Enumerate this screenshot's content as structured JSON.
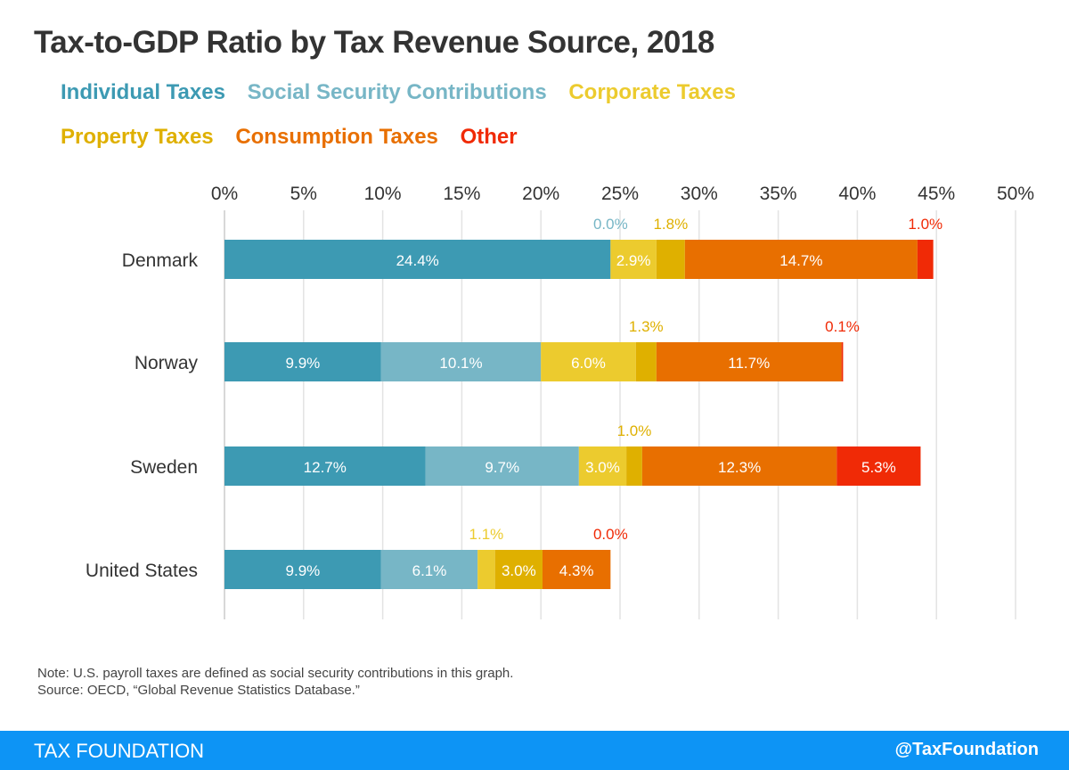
{
  "chart_data": {
    "type": "bar",
    "orientation": "horizontal",
    "stacked": true,
    "title": "Tax-to-GDP Ratio by Tax Revenue Source, 2018",
    "categories": [
      "Denmark",
      "Norway",
      "Sweden",
      "United States"
    ],
    "series": [
      {
        "name": "Individual Taxes",
        "color": "#3d9ab3",
        "values": [
          24.4,
          9.9,
          12.7,
          9.9
        ],
        "labels": [
          "24.4%",
          "9.9%",
          "12.7%",
          "9.9%"
        ]
      },
      {
        "name": "Social Security Contributions",
        "color": "#77b6c6",
        "values": [
          0.0,
          10.1,
          9.7,
          6.1
        ],
        "labels": [
          "0.0%",
          "10.1%",
          "9.7%",
          "6.1%"
        ]
      },
      {
        "name": "Corporate Taxes",
        "color": "#eccb2e",
        "values": [
          2.9,
          6.0,
          3.0,
          1.1
        ],
        "labels": [
          "2.9%",
          "6.0%",
          "3.0%",
          "1.1%"
        ]
      },
      {
        "name": "Property Taxes",
        "color": "#dfb000",
        "values": [
          1.8,
          1.3,
          1.0,
          3.0
        ],
        "labels": [
          "1.8%",
          "1.3%",
          "1.0%",
          "3.0%"
        ]
      },
      {
        "name": "Consumption Taxes",
        "color": "#e86f00",
        "values": [
          14.7,
          11.7,
          12.3,
          4.3
        ],
        "labels": [
          "14.7%",
          "11.7%",
          "12.3%",
          "4.3%"
        ]
      },
      {
        "name": "Other",
        "color": "#f02a06",
        "values": [
          1.0,
          0.1,
          5.3,
          0.0
        ],
        "labels": [
          "1.0%",
          "0.1%",
          "5.3%",
          "0.0%"
        ]
      }
    ],
    "xlim": [
      0,
      50
    ],
    "xticks": [
      "0%",
      "5%",
      "10%",
      "15%",
      "20%",
      "25%",
      "30%",
      "35%",
      "40%",
      "45%",
      "50%"
    ],
    "grid": true,
    "legend": "top"
  },
  "note": "Note: U.S. payroll taxes are defined as social security contributions in this graph.",
  "source": "Source: OECD, “Global Revenue Statistics Database.”",
  "footer": {
    "brand": "TAX FOUNDATION",
    "handle": "@TaxFoundation"
  }
}
